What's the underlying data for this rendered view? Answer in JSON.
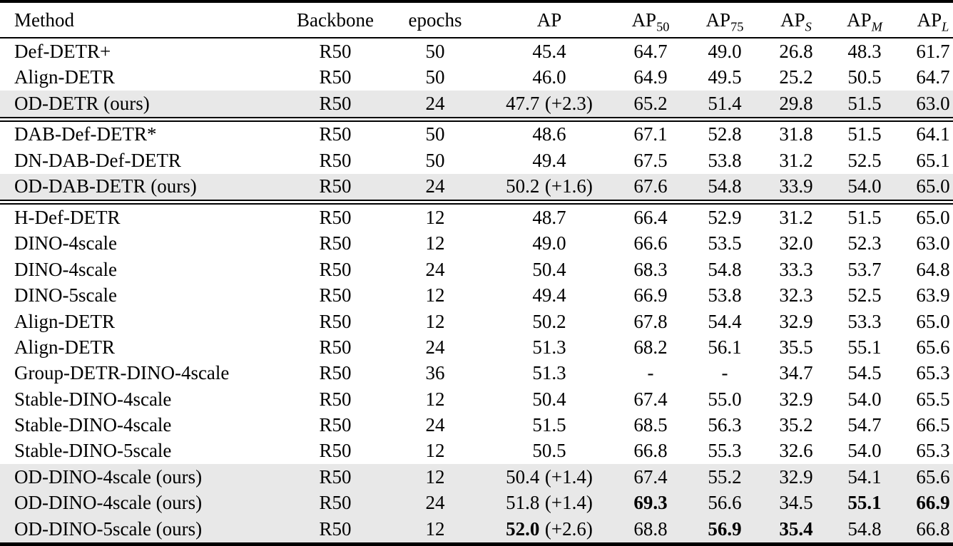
{
  "table": {
    "highlight_color": "#e8e8e8",
    "text_color": "#000000",
    "columns": [
      {
        "key": "method",
        "label": "Method",
        "sub": "",
        "sub_italic": false,
        "align": "left"
      },
      {
        "key": "backbone",
        "label": "Backbone",
        "sub": "",
        "sub_italic": false,
        "align": "center"
      },
      {
        "key": "epochs",
        "label": "epochs",
        "sub": "",
        "sub_italic": false,
        "align": "center"
      },
      {
        "key": "ap",
        "label": "AP",
        "sub": "",
        "sub_italic": false,
        "align": "center"
      },
      {
        "key": "ap50",
        "label": "AP",
        "sub": "50",
        "sub_italic": false,
        "align": "center"
      },
      {
        "key": "ap75",
        "label": "AP",
        "sub": "75",
        "sub_italic": false,
        "align": "center"
      },
      {
        "key": "aps",
        "label": "AP",
        "sub": "S",
        "sub_italic": true,
        "align": "center"
      },
      {
        "key": "apm",
        "label": "AP",
        "sub": "M",
        "sub_italic": true,
        "align": "center"
      },
      {
        "key": "apl",
        "label": "AP",
        "sub": "L",
        "sub_italic": true,
        "align": "center"
      }
    ],
    "rows": [
      {
        "section": 0,
        "method": "Def-DETR+",
        "backbone": "R50",
        "epochs": "50",
        "ap": "45.4",
        "ap_delta": "",
        "ap50": "64.7",
        "ap75": "49.0",
        "aps": "26.8",
        "apm": "48.3",
        "apl": "61.7",
        "highlight": false,
        "bold": []
      },
      {
        "section": 0,
        "method": "Align-DETR",
        "backbone": "R50",
        "epochs": "50",
        "ap": "46.0",
        "ap_delta": "",
        "ap50": "64.9",
        "ap75": "49.5",
        "aps": "25.2",
        "apm": "50.5",
        "apl": "64.7",
        "highlight": false,
        "bold": []
      },
      {
        "section": 0,
        "method": "OD-DETR (ours)",
        "backbone": "R50",
        "epochs": "24",
        "ap": "47.7",
        "ap_delta": "(+2.3)",
        "ap50": "65.2",
        "ap75": "51.4",
        "aps": "29.8",
        "apm": "51.5",
        "apl": "63.0",
        "highlight": true,
        "bold": []
      },
      {
        "section": 1,
        "method": "DAB-Def-DETR*",
        "backbone": "R50",
        "epochs": "50",
        "ap": "48.6",
        "ap_delta": "",
        "ap50": "67.1",
        "ap75": "52.8",
        "aps": "31.8",
        "apm": "51.5",
        "apl": "64.1",
        "highlight": false,
        "bold": []
      },
      {
        "section": 1,
        "method": "DN-DAB-Def-DETR",
        "backbone": "R50",
        "epochs": "50",
        "ap": "49.4",
        "ap_delta": "",
        "ap50": "67.5",
        "ap75": "53.8",
        "aps": "31.2",
        "apm": "52.5",
        "apl": "65.1",
        "highlight": false,
        "bold": []
      },
      {
        "section": 1,
        "method": "OD-DAB-DETR (ours)",
        "backbone": "R50",
        "epochs": "24",
        "ap": "50.2",
        "ap_delta": "(+1.6)",
        "ap50": "67.6",
        "ap75": "54.8",
        "aps": "33.9",
        "apm": "54.0",
        "apl": "65.0",
        "highlight": true,
        "bold": []
      },
      {
        "section": 2,
        "method": "H-Def-DETR",
        "backbone": "R50",
        "epochs": "12",
        "ap": "48.7",
        "ap_delta": "",
        "ap50": "66.4",
        "ap75": "52.9",
        "aps": "31.2",
        "apm": "51.5",
        "apl": "65.0",
        "highlight": false,
        "bold": []
      },
      {
        "section": 2,
        "method": "DINO-4scale",
        "backbone": "R50",
        "epochs": "12",
        "ap": "49.0",
        "ap_delta": "",
        "ap50": "66.6",
        "ap75": "53.5",
        "aps": "32.0",
        "apm": "52.3",
        "apl": "63.0",
        "highlight": false,
        "bold": []
      },
      {
        "section": 2,
        "method": "DINO-4scale",
        "backbone": "R50",
        "epochs": "24",
        "ap": "50.4",
        "ap_delta": "",
        "ap50": "68.3",
        "ap75": "54.8",
        "aps": "33.3",
        "apm": "53.7",
        "apl": "64.8",
        "highlight": false,
        "bold": []
      },
      {
        "section": 2,
        "method": "DINO-5scale",
        "backbone": "R50",
        "epochs": "12",
        "ap": "49.4",
        "ap_delta": "",
        "ap50": "66.9",
        "ap75": "53.8",
        "aps": "32.3",
        "apm": "52.5",
        "apl": "63.9",
        "highlight": false,
        "bold": []
      },
      {
        "section": 2,
        "method": "Align-DETR",
        "backbone": "R50",
        "epochs": "12",
        "ap": "50.2",
        "ap_delta": "",
        "ap50": "67.8",
        "ap75": "54.4",
        "aps": "32.9",
        "apm": "53.3",
        "apl": "65.0",
        "highlight": false,
        "bold": []
      },
      {
        "section": 2,
        "method": "Align-DETR",
        "backbone": "R50",
        "epochs": "24",
        "ap": "51.3",
        "ap_delta": "",
        "ap50": "68.2",
        "ap75": "56.1",
        "aps": "35.5",
        "apm": "55.1",
        "apl": "65.6",
        "highlight": false,
        "bold": []
      },
      {
        "section": 2,
        "method": "Group-DETR-DINO-4scale",
        "backbone": "R50",
        "epochs": "36",
        "ap": "51.3",
        "ap_delta": "",
        "ap50": "-",
        "ap75": "-",
        "aps": "34.7",
        "apm": "54.5",
        "apl": "65.3",
        "highlight": false,
        "bold": []
      },
      {
        "section": 2,
        "method": "Stable-DINO-4scale",
        "backbone": "R50",
        "epochs": "12",
        "ap": "50.4",
        "ap_delta": "",
        "ap50": "67.4",
        "ap75": "55.0",
        "aps": "32.9",
        "apm": "54.0",
        "apl": "65.5",
        "highlight": false,
        "bold": []
      },
      {
        "section": 2,
        "method": "Stable-DINO-4scale",
        "backbone": "R50",
        "epochs": "24",
        "ap": "51.5",
        "ap_delta": "",
        "ap50": "68.5",
        "ap75": "56.3",
        "aps": "35.2",
        "apm": "54.7",
        "apl": "66.5",
        "highlight": false,
        "bold": []
      },
      {
        "section": 2,
        "method": "Stable-DINO-5scale",
        "backbone": "R50",
        "epochs": "12",
        "ap": "50.5",
        "ap_delta": "",
        "ap50": "66.8",
        "ap75": "55.3",
        "aps": "32.6",
        "apm": "54.0",
        "apl": "65.3",
        "highlight": false,
        "bold": []
      },
      {
        "section": 2,
        "method": "OD-DINO-4scale (ours)",
        "backbone": "R50",
        "epochs": "12",
        "ap": "50.4",
        "ap_delta": "(+1.4)",
        "ap50": "67.4",
        "ap75": "55.2",
        "aps": "32.9",
        "apm": "54.1",
        "apl": "65.6",
        "highlight": true,
        "bold": []
      },
      {
        "section": 2,
        "method": "OD-DINO-4scale (ours)",
        "backbone": "R50",
        "epochs": "24",
        "ap": "51.8",
        "ap_delta": "(+1.4)",
        "ap50": "69.3",
        "ap75": "56.6",
        "aps": "34.5",
        "apm": "55.1",
        "apl": "66.9",
        "highlight": true,
        "bold": [
          "ap50",
          "apm",
          "apl"
        ]
      },
      {
        "section": 2,
        "method": "OD-DINO-5scale (ours)",
        "backbone": "R50",
        "epochs": "12",
        "ap": "52.0",
        "ap_delta": "(+2.6)",
        "ap50": "68.8",
        "ap75": "56.9",
        "aps": "35.4",
        "apm": "54.8",
        "apl": "66.8",
        "highlight": true,
        "bold": [
          "ap",
          "ap75",
          "aps"
        ]
      }
    ]
  }
}
